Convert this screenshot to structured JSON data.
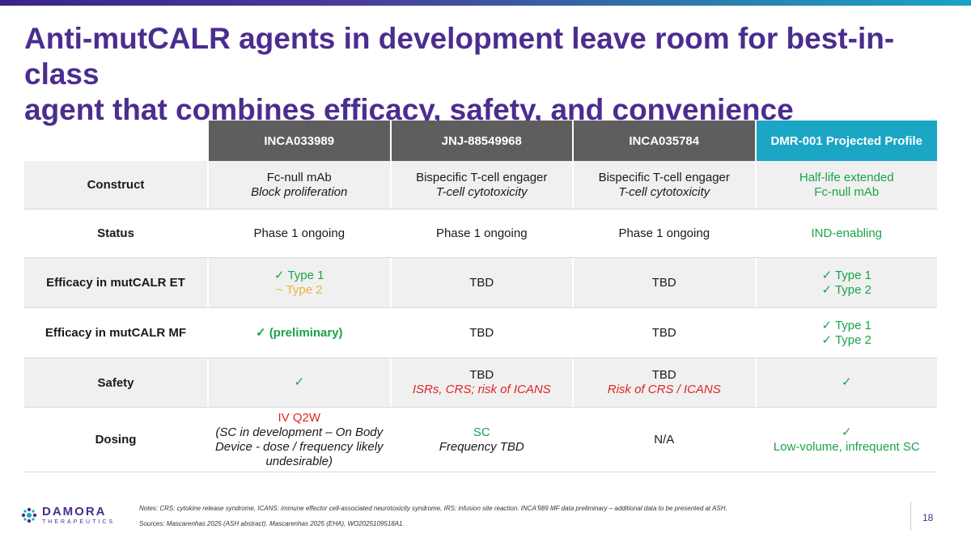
{
  "title": {
    "line1": "Anti-mutCALR agents in development leave room for best-in-class",
    "line2": "agent that combines efficacy, safety, and convenience"
  },
  "table": {
    "headers": [
      "INCA033989",
      "JNJ-88549968",
      "INCA035784",
      "DMR-001 Projected Profile"
    ],
    "rows": [
      {
        "label": "Construct",
        "cells": [
          {
            "l1": "Fc-null mAb",
            "l2": "Block proliferation"
          },
          {
            "l1": "Bispecific T-cell engager",
            "l2": "T-cell cytotoxicity"
          },
          {
            "l1": "Bispecific T-cell engager",
            "l2": "T-cell cytotoxicity"
          },
          {
            "l1": "Half-life extended",
            "l2": "Fc-null mAb"
          }
        ]
      },
      {
        "label": "Status",
        "cells": [
          "Phase 1 ongoing",
          "Phase 1 ongoing",
          "Phase 1 ongoing",
          "IND-enabling"
        ]
      },
      {
        "label": "Efficacy in mutCALR ET",
        "cells": [
          {
            "l1": "✓ Type 1",
            "l2": "~ Type 2"
          },
          {
            "l1": "TBD"
          },
          {
            "l1": "TBD"
          },
          {
            "l1": "✓ Type 1",
            "l2": "✓ Type 2"
          }
        ]
      },
      {
        "label": "Efficacy in mutCALR MF",
        "cells": [
          {
            "l1": "✓ (preliminary)"
          },
          {
            "l1": "TBD"
          },
          {
            "l1": "TBD"
          },
          {
            "l1": "✓ Type 1",
            "l2": "✓ Type 2"
          }
        ]
      },
      {
        "label": "Safety",
        "cells": [
          {
            "l1": "✓"
          },
          {
            "l1": "TBD",
            "l2": "ISRs, CRS; risk of ICANS"
          },
          {
            "l1": "TBD",
            "l2": "Risk of CRS / ICANS"
          },
          {
            "l1": "✓"
          }
        ]
      },
      {
        "label": "Dosing",
        "cells": [
          {
            "l1": "IV Q2W",
            "l2": "(SC in development – On Body Device - dose / frequency likely undesirable)"
          },
          {
            "l1": "SC",
            "l2": "Frequency TBD"
          },
          {
            "l1": "N/A"
          },
          {
            "l1": "✓",
            "l2": "Low-volume, infrequent SC"
          }
        ]
      }
    ]
  },
  "footer": {
    "logo_name": "DAMORA",
    "logo_sub": "THERAPEUTICS",
    "notes": "Notes: CRS: cytokine release syndrome, ICANS: immune effector cell-associated neurotoxicity syndrome, IRS: infusion site reaction. INCA'989 MF data preliminary – additional data to be presented at ASH.",
    "sources": "Sources: Mascarenhas 2025 (ASH abstract). Mascarenhas 2025 (EHA), WO2025109518A1.",
    "page": "18"
  },
  "colors": {
    "title": "#4b2d8f",
    "header_gray": "#5e5e5e",
    "header_teal": "#1aa6c4",
    "positive": "#19a34a",
    "caution": "#f0b23c",
    "negative": "#e02424"
  }
}
